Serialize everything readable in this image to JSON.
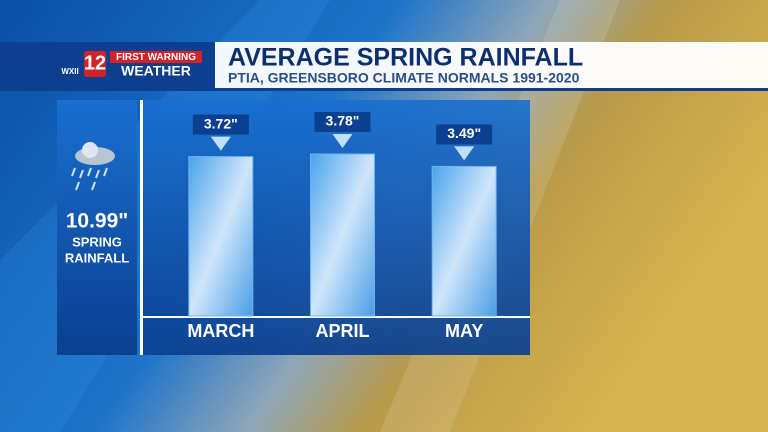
{
  "chart_data": {
    "type": "bar",
    "title": "AVERAGE SPRING RAINFALL",
    "subtitle": "PTIA, GREENSBORO CLIMATE NORMALS 1991-2020",
    "categories": [
      "MARCH",
      "APRIL",
      "MAY"
    ],
    "values": [
      3.72,
      3.78,
      3.49
    ],
    "value_labels": [
      "3.72\"",
      "3.78\"",
      "3.49\""
    ],
    "color": "#6fb4ec",
    "annotations": [
      "10.99\"",
      "SPRING",
      "RAINFALL"
    ],
    "logo": {
      "channel": "12",
      "station": "WXII",
      "brand_top": "FIRST WARNING",
      "brand_bottom": "WEATHER"
    }
  }
}
